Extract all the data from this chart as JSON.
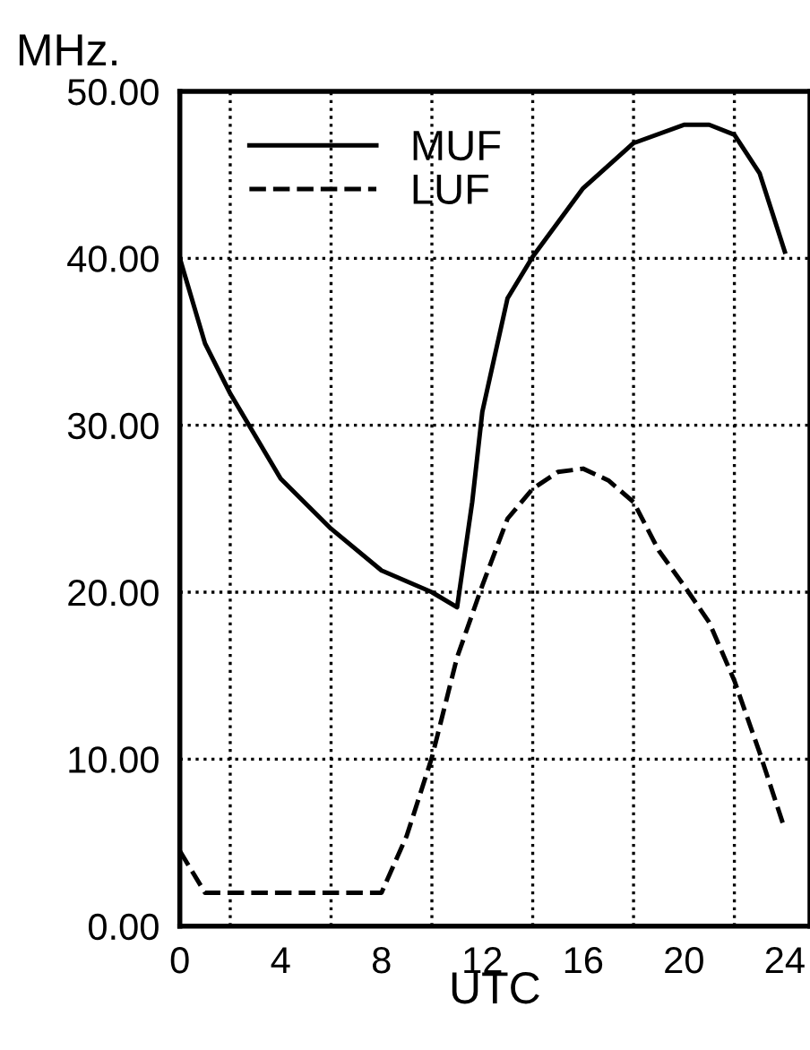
{
  "chart_data": {
    "type": "line",
    "xlabel": "UTC",
    "ylabel": "MHz.",
    "xlim": [
      0,
      25
    ],
    "xticks": [
      0,
      4,
      8,
      12,
      16,
      20,
      24
    ],
    "ylim": [
      0,
      50
    ],
    "yticks": [
      {
        "value": 0,
        "label": "0.00"
      },
      {
        "value": 10,
        "label": "10.00"
      },
      {
        "value": 20,
        "label": "20.00"
      },
      {
        "value": 30,
        "label": "30.00"
      },
      {
        "value": 40,
        "label": "40.00"
      },
      {
        "value": 50,
        "label": "50.00"
      }
    ],
    "grid": true,
    "legend": "top left",
    "series": [
      {
        "name": "MUF",
        "color": "#000000",
        "line_style": "solid",
        "x": [
          0,
          1,
          2,
          4,
          6,
          8,
          10,
          11,
          11.6,
          12,
          13,
          14,
          16,
          18,
          20,
          21,
          22,
          23,
          24
        ],
        "values": [
          40,
          34.9,
          31.9,
          26.8,
          23.8,
          21.3,
          20.0,
          19.1,
          25.4,
          30.8,
          37.6,
          40.1,
          44.2,
          46.9,
          48.0,
          48.0,
          47.4,
          45.1,
          40.4
        ]
      },
      {
        "name": "LUF",
        "color": "#000000",
        "line_style": "dashed",
        "x": [
          0,
          1,
          2,
          4,
          6,
          8,
          9,
          10,
          11,
          12,
          13,
          14,
          15,
          16,
          17,
          18,
          19,
          20,
          21,
          22,
          23,
          24
        ],
        "values": [
          4.5,
          2.0,
          2.0,
          2.0,
          2.0,
          2.0,
          5.4,
          10.1,
          16.1,
          20.4,
          24.4,
          26.2,
          27.2,
          27.4,
          26.7,
          25.4,
          22.5,
          20.4,
          18.2,
          14.7,
          10.4,
          5.8
        ]
      }
    ]
  }
}
